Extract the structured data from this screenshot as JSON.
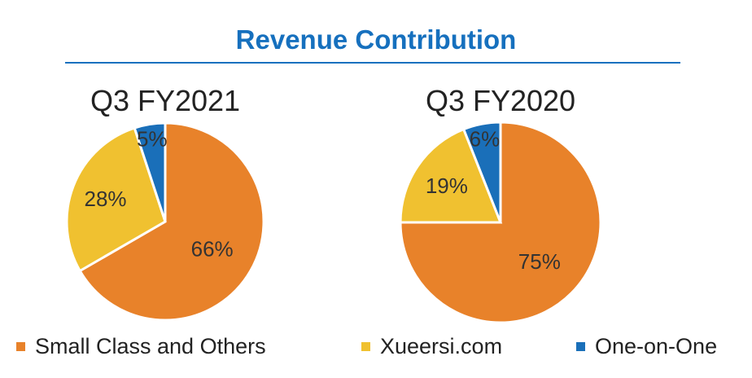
{
  "chart_data": [
    {
      "type": "pie",
      "title": "Q3 FY2021",
      "categories": [
        "Small Class and Others",
        "Xueersi.com",
        "One-on-One"
      ],
      "values": [
        66,
        28,
        5
      ],
      "labels": [
        "66%",
        "28%",
        "5%"
      ]
    },
    {
      "type": "pie",
      "title": "Q3 FY2020",
      "categories": [
        "Small Class and Others",
        "Xueersi.com",
        "One-on-One"
      ],
      "values": [
        75,
        19,
        6
      ],
      "labels": [
        "75%",
        "19%",
        "6%"
      ]
    }
  ],
  "title": "Revenue Contribution",
  "legend": [
    {
      "label": "Small Class and Others",
      "color": "#E8822A"
    },
    {
      "label": "Xueersi.com",
      "color": "#F0C130"
    },
    {
      "label": "One-on-One",
      "color": "#1A6FB9"
    }
  ],
  "legend_position": "bottom"
}
